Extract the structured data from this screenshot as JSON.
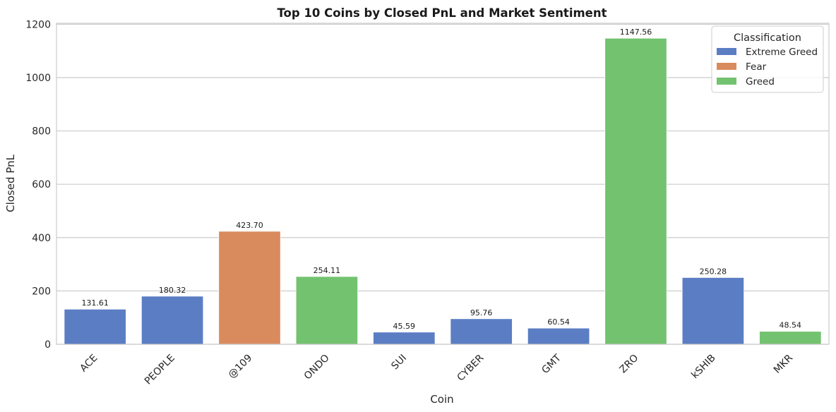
{
  "chart_data": {
    "type": "bar",
    "title": "Top 10 Coins by Closed PnL and Market Sentiment",
    "xlabel": "Coin",
    "ylabel": "Closed PnL",
    "ylim": [
      0,
      1200
    ],
    "yticks": [
      0,
      200,
      400,
      600,
      800,
      1000,
      1200
    ],
    "grid": "horizontal",
    "categories": [
      "ACE",
      "PEOPLE",
      "@109",
      "ONDO",
      "SUI",
      "CYBER",
      "GMT",
      "ZRO",
      "kSHIB",
      "MKR"
    ],
    "values": [
      131.61,
      180.32,
      423.7,
      254.11,
      45.59,
      95.76,
      60.54,
      1147.56,
      250.28,
      48.54
    ],
    "value_labels": [
      "131.61",
      "180.32",
      "423.70",
      "254.11",
      "45.59",
      "95.76",
      "60.54",
      "1147.56",
      "250.28",
      "48.54"
    ],
    "classification": [
      "Extreme Greed",
      "Extreme Greed",
      "Fear",
      "Greed",
      "Extreme Greed",
      "Extreme Greed",
      "Extreme Greed",
      "Greed",
      "Extreme Greed",
      "Greed"
    ],
    "legend": {
      "title": "Classification",
      "placement": "top-right",
      "entries": [
        {
          "name": "Extreme Greed",
          "color": "#5b7dc4"
        },
        {
          "name": "Fear",
          "color": "#d98b5d"
        },
        {
          "name": "Greed",
          "color": "#73c26f"
        }
      ]
    }
  }
}
